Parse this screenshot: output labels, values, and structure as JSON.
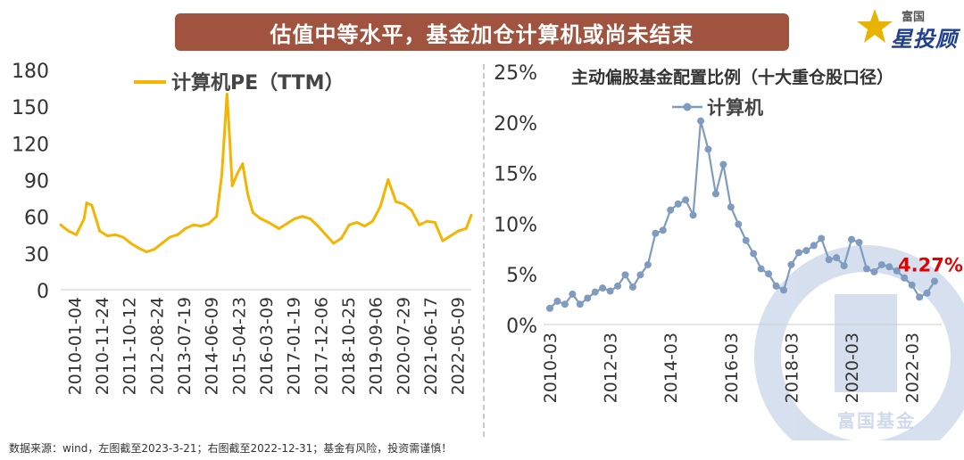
{
  "banner": {
    "title": "估值中等水平，基金加仓计算机或尚未结束"
  },
  "brand": {
    "top": "富国",
    "main": "星投顾"
  },
  "watermark": "富国基金",
  "source_note": "数据来源：wind，左图截至2023-3-21；右图截至2022-12-31；基金有风险，投资需谨慎！",
  "colors": {
    "banner": "#a0533f",
    "pe_line": "#f5b400",
    "alloc_line": "#7f9bbf",
    "highlight": "#e00000"
  },
  "chart_data": [
    {
      "type": "line",
      "title": "",
      "xlabel": "",
      "ylabel": "",
      "ylim": [
        0,
        180
      ],
      "yticks": [
        0,
        30,
        60,
        90,
        120,
        150,
        180
      ],
      "grid": false,
      "legend": "top",
      "xticks": [
        "2010-01-04",
        "2010-11-24",
        "2011-10-12",
        "2012-08-24",
        "2013-07-19",
        "2014-06-09",
        "2015-04-23",
        "2016-03-09",
        "2017-01-19",
        "2017-12-06",
        "2018-10-25",
        "2019-09-06",
        "2020-07-29",
        "2021-06-17",
        "2022-05-09"
      ],
      "series": [
        {
          "name": "计算机PE（TTM）",
          "x": [
            "2010-01",
            "2010-04",
            "2010-07",
            "2010-10",
            "2010-11",
            "2011-01",
            "2011-04",
            "2011-07",
            "2011-10",
            "2012-01",
            "2012-04",
            "2012-07",
            "2012-10",
            "2013-01",
            "2013-04",
            "2013-07",
            "2013-10",
            "2014-01",
            "2014-04",
            "2014-07",
            "2014-10",
            "2015-01",
            "2015-03",
            "2015-05",
            "2015-06",
            "2015-07",
            "2015-09",
            "2015-11",
            "2016-01",
            "2016-03",
            "2016-06",
            "2016-09",
            "2017-01",
            "2017-04",
            "2017-07",
            "2017-10",
            "2018-01",
            "2018-04",
            "2018-07",
            "2018-10",
            "2019-01",
            "2019-04",
            "2019-07",
            "2019-10",
            "2020-01",
            "2020-04",
            "2020-07",
            "2020-10",
            "2021-01",
            "2021-04",
            "2021-07",
            "2021-10",
            "2022-01",
            "2022-04",
            "2022-07",
            "2022-10",
            "2023-01",
            "2023-03"
          ],
          "values": [
            53,
            48,
            45,
            58,
            71,
            69,
            48,
            44,
            45,
            43,
            38,
            34,
            31,
            33,
            38,
            43,
            45,
            50,
            53,
            52,
            54,
            60,
            94,
            160,
            125,
            85,
            95,
            103,
            78,
            63,
            58,
            55,
            50,
            54,
            58,
            60,
            58,
            52,
            45,
            38,
            42,
            53,
            55,
            52,
            56,
            68,
            90,
            72,
            70,
            65,
            53,
            56,
            55,
            40,
            44,
            48,
            50,
            61
          ]
        }
      ]
    },
    {
      "type": "line",
      "title": "主动偏股基金配置比例（十大重仓股口径）",
      "xlabel": "",
      "ylabel": "",
      "ylim": [
        0,
        25
      ],
      "yticks": [
        "0%",
        "5%",
        "10%",
        "15%",
        "20%",
        "25%"
      ],
      "grid": false,
      "legend": "top",
      "xticks": [
        "2010-03",
        "2012-03",
        "2014-03",
        "2016-03",
        "2018-03",
        "2020-03",
        "2022-03"
      ],
      "series": [
        {
          "name": "计算机",
          "x": [
            "2010-03",
            "2010-06",
            "2010-09",
            "2010-12",
            "2011-03",
            "2011-06",
            "2011-09",
            "2011-12",
            "2012-03",
            "2012-06",
            "2012-09",
            "2012-12",
            "2013-03",
            "2013-06",
            "2013-09",
            "2013-12",
            "2014-03",
            "2014-06",
            "2014-09",
            "2014-12",
            "2015-03",
            "2015-06",
            "2015-09",
            "2015-12",
            "2016-03",
            "2016-06",
            "2016-09",
            "2016-12",
            "2017-03",
            "2017-06",
            "2017-09",
            "2017-12",
            "2018-03",
            "2018-06",
            "2018-09",
            "2018-12",
            "2019-03",
            "2019-06",
            "2019-09",
            "2019-12",
            "2020-03",
            "2020-06",
            "2020-09",
            "2020-12",
            "2021-03",
            "2021-06",
            "2021-09",
            "2021-12",
            "2022-03",
            "2022-06",
            "2022-09",
            "2022-12"
          ],
          "values": [
            1.6,
            2.3,
            2.0,
            3.0,
            2.0,
            2.6,
            3.2,
            3.6,
            3.3,
            3.8,
            4.9,
            3.7,
            4.9,
            5.9,
            9.0,
            9.3,
            11.3,
            11.9,
            12.3,
            10.8,
            20.1,
            17.3,
            12.9,
            15.8,
            11.6,
            9.9,
            8.3,
            7.0,
            5.5,
            5.0,
            3.8,
            3.4,
            5.9,
            7.1,
            7.3,
            7.8,
            8.5,
            6.4,
            6.6,
            5.8,
            8.4,
            8.1,
            5.5,
            5.2,
            5.9,
            5.7,
            5.3,
            4.6,
            3.9,
            2.7,
            3.1,
            4.27
          ]
        }
      ],
      "annotation": "4.27%"
    }
  ]
}
